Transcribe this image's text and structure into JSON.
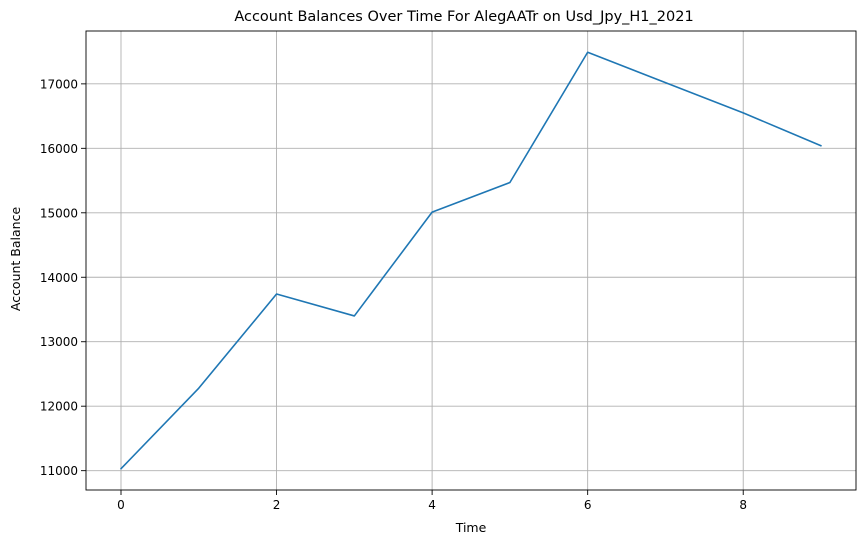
{
  "chart_data": {
    "type": "line",
    "title": "Account Balances Over Time For AlegAATr on Usd_Jpy_H1_2021",
    "xlabel": "Time",
    "ylabel": "Account Balance",
    "x": [
      0,
      1,
      2,
      3,
      4,
      5,
      6,
      7,
      8,
      9
    ],
    "series": [
      {
        "values": [
          11030,
          12280,
          13740,
          13400,
          15010,
          15470,
          17490,
          17020,
          16550,
          16040
        ],
        "color": "#1f77b4"
      }
    ],
    "xlim": [
      -0.45,
      9.45
    ],
    "ylim": [
      10700,
      17820
    ],
    "xticks": [
      0,
      2,
      4,
      6,
      8
    ],
    "yticks": [
      11000,
      12000,
      13000,
      14000,
      15000,
      16000,
      17000
    ],
    "grid": true
  }
}
